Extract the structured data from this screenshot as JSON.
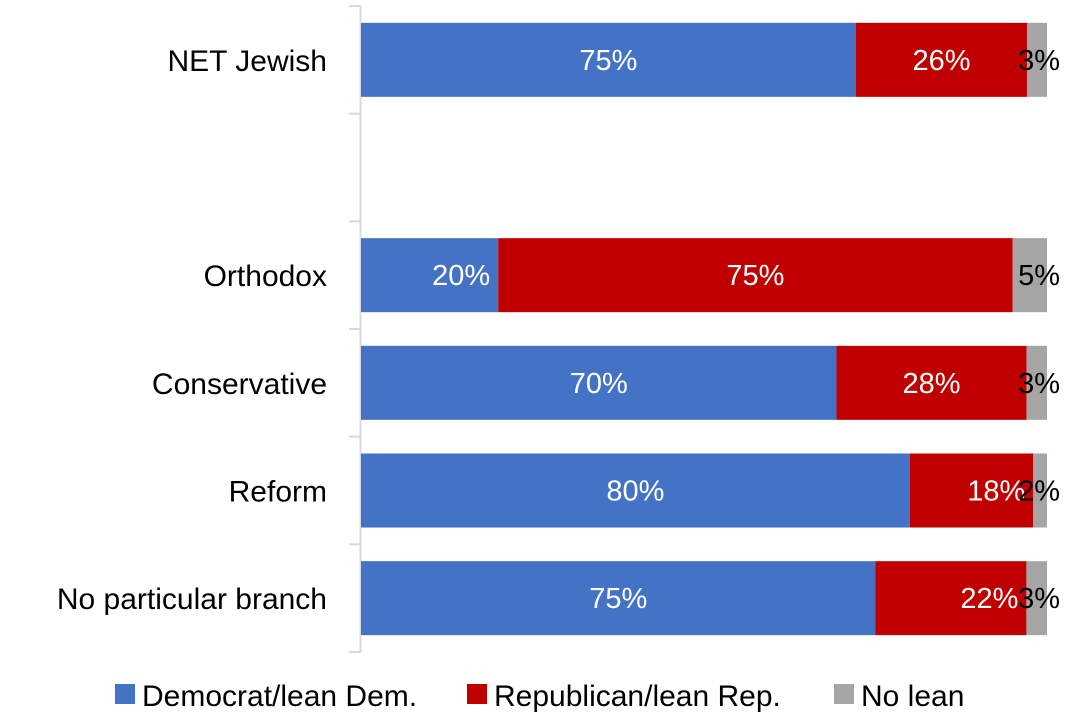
{
  "chart_data": {
    "type": "bar",
    "orientation": "horizontal",
    "stacked": true,
    "categories": [
      "NET Jewish",
      "",
      "Orthodox",
      "Conservative",
      "Reform",
      "No particular branch"
    ],
    "series": [
      {
        "name": "Democrat/lean Dem.",
        "color": "#4472C4",
        "label_color": "#FFFFFF",
        "values": [
          75,
          null,
          20,
          70,
          80,
          75
        ],
        "labels": [
          "75%",
          "",
          "20%",
          "70%",
          "80%",
          "75%"
        ]
      },
      {
        "name": "Republican/lean Rep.",
        "color": "#C00000",
        "label_color": "#FFFFFF",
        "values": [
          26,
          null,
          75,
          28,
          18,
          22
        ],
        "labels": [
          "26%",
          "",
          "75%",
          "28%",
          "18%",
          "22%"
        ]
      },
      {
        "name": "No lean",
        "color": "#A5A5A5",
        "label_color": "#000000",
        "values": [
          3,
          null,
          5,
          3,
          2,
          3
        ],
        "labels": [
          "3%",
          "",
          "5%",
          "3%",
          "2%",
          "3%"
        ]
      }
    ],
    "xlim": [
      0,
      100
    ],
    "grid": false,
    "legend_position": "bottom",
    "title": "",
    "xlabel": "",
    "ylabel": ""
  }
}
